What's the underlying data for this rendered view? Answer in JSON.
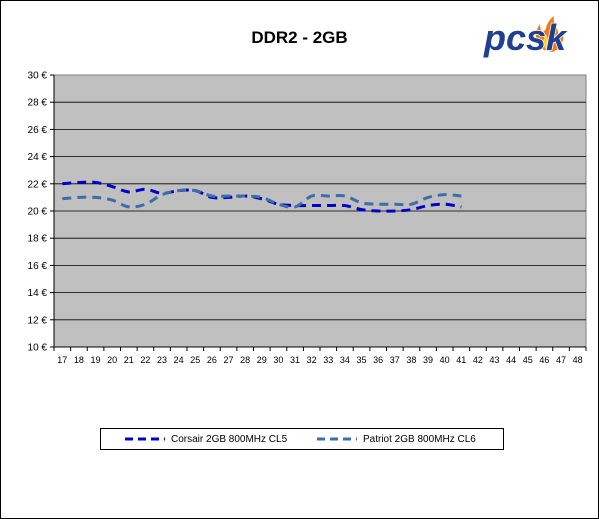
{
  "chart_data": {
    "type": "line",
    "title": "DDR2 - 2GB",
    "x": [
      17,
      18,
      19,
      20,
      21,
      22,
      23,
      24,
      25,
      26,
      27,
      28,
      29,
      30,
      31,
      32,
      33,
      34,
      35,
      36,
      37,
      38,
      39,
      40,
      41,
      42,
      43,
      44,
      45,
      46,
      47,
      48
    ],
    "y_ticks": [
      "10 €",
      "12 €",
      "14 €",
      "16 €",
      "18 €",
      "20 €",
      "22 €",
      "24 €",
      "26 €",
      "28 €",
      "30 €"
    ],
    "ylim": [
      10,
      30
    ],
    "grid": true,
    "legend_position": "bottom",
    "series": [
      {
        "name": "Corsair 2GB 800MHz CL5",
        "color": "#0000cc",
        "x": [
          17,
          18,
          19,
          20,
          21,
          22,
          23,
          24,
          25,
          26,
          27,
          28,
          29,
          30,
          31,
          32,
          33,
          34,
          35,
          36,
          37,
          38,
          39,
          40,
          41
        ],
        "values": [
          22.0,
          22.1,
          22.1,
          21.8,
          21.4,
          21.6,
          21.3,
          21.5,
          21.5,
          21.0,
          21.0,
          21.1,
          20.9,
          20.5,
          20.4,
          20.4,
          20.4,
          20.4,
          20.1,
          20.0,
          20.0,
          20.1,
          20.4,
          20.5,
          20.3
        ]
      },
      {
        "name": "Patriot 2GB 800MHz CL6",
        "color": "#3e6ea8",
        "x": [
          17,
          18,
          19,
          20,
          21,
          22,
          23,
          24,
          25,
          26,
          27,
          28,
          29,
          30,
          31,
          32,
          33,
          34,
          35,
          36,
          37,
          38,
          39,
          40,
          41
        ],
        "values": [
          20.9,
          21.0,
          21.0,
          20.8,
          20.3,
          20.5,
          21.2,
          21.5,
          21.5,
          21.1,
          21.1,
          21.1,
          21.0,
          20.5,
          20.3,
          21.1,
          21.1,
          21.1,
          20.6,
          20.5,
          20.5,
          20.5,
          21.0,
          21.2,
          21.1
        ]
      }
    ]
  },
  "logo": {
    "text": "pcsk"
  }
}
